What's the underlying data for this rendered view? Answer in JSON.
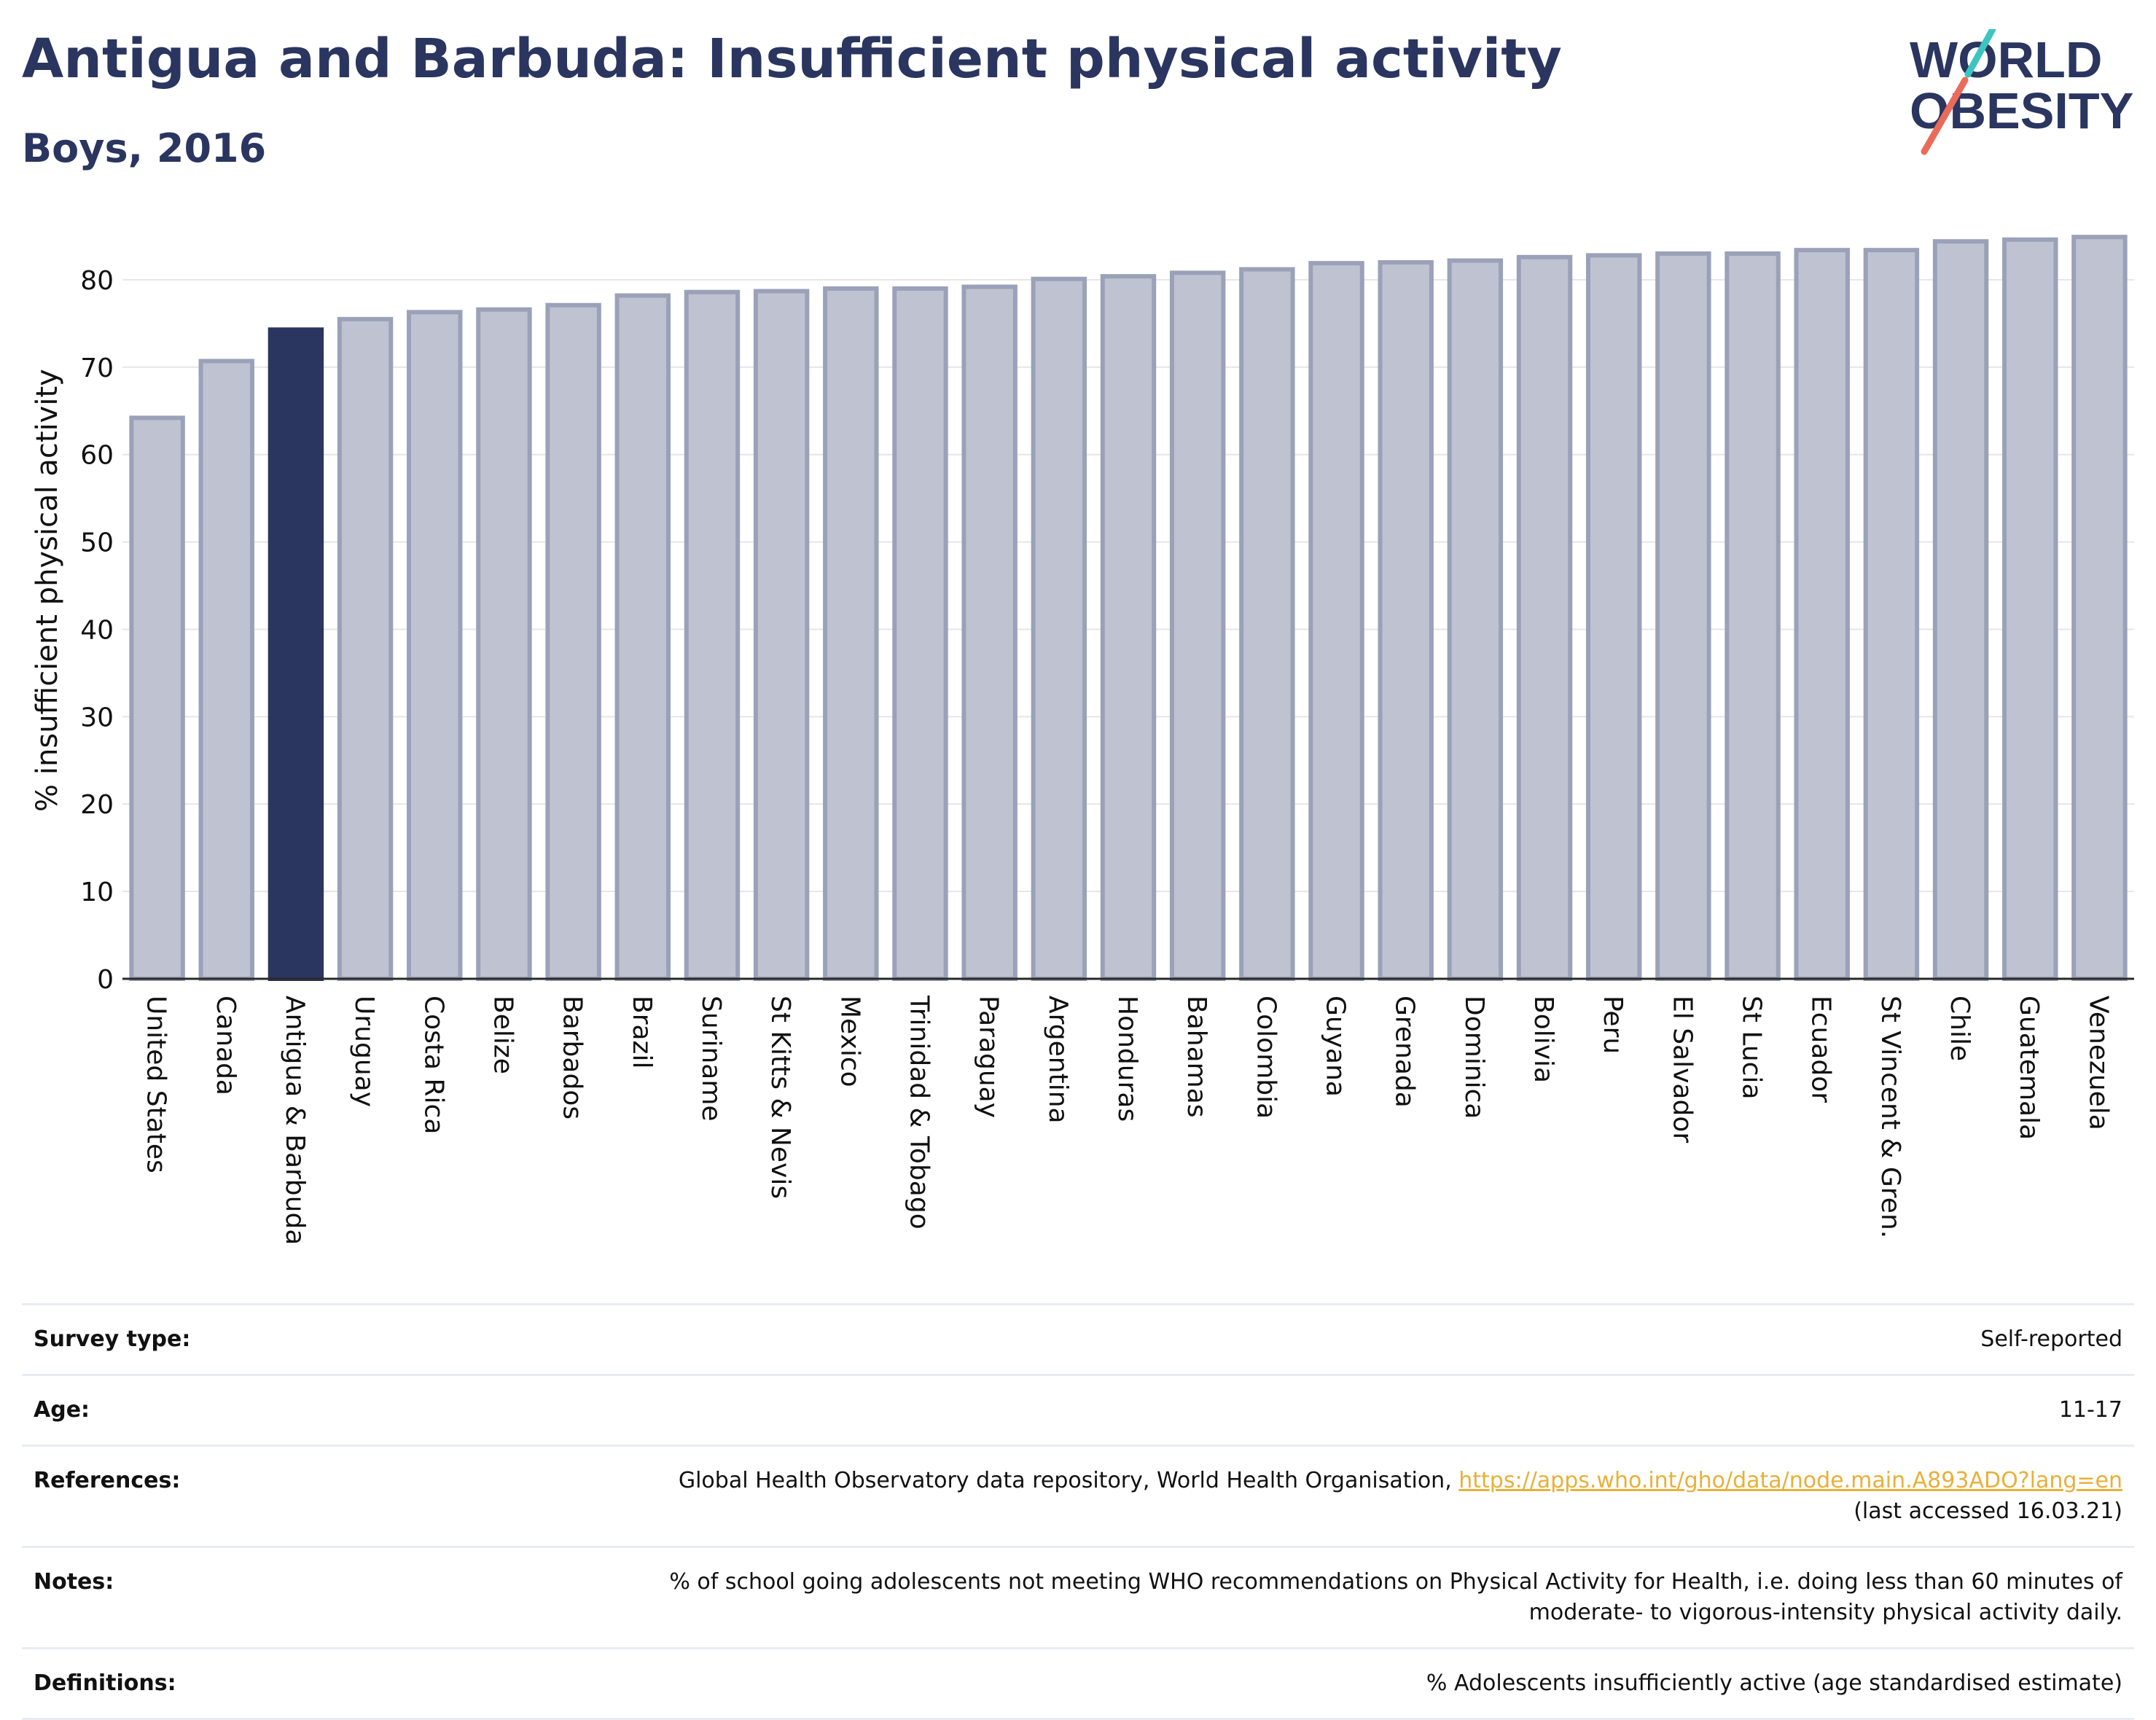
{
  "header": {
    "title": "Antigua and Barbuda: Insufficient physical activity",
    "subtitle": "Boys, 2016"
  },
  "logo": {
    "line1": "WORLD",
    "line2": "OBESITY",
    "slash_colors": [
      "#3cc5c0",
      "#ea6b5a"
    ],
    "text_color": "#2a3560"
  },
  "colors": {
    "bar_fill": "#bfc3d1",
    "bar_stroke": "#9aa1b8",
    "highlight": "#2a3560",
    "grid": "#e6e6e6",
    "axis": "#2a2a2a"
  },
  "chart_data": {
    "type": "bar",
    "title": "",
    "xlabel": "",
    "ylabel": "% insufficient physical activity",
    "ylim": [
      0,
      87
    ],
    "yticks": [
      0,
      10,
      20,
      30,
      40,
      50,
      60,
      70,
      80
    ],
    "grid": true,
    "highlight": "Antigua & Barbuda",
    "categories": [
      "United States",
      "Canada",
      "Antigua & Barbuda",
      "Uruguay",
      "Costa Rica",
      "Belize",
      "Barbados",
      "Brazil",
      "Suriname",
      "St Kitts & Nevis",
      "Mexico",
      "Trinidad & Tobago",
      "Paraguay",
      "Argentina",
      "Honduras",
      "Bahamas",
      "Colombia",
      "Guyana",
      "Grenada",
      "Dominica",
      "Bolivia",
      "Peru",
      "El Salvador",
      "St Lucia",
      "Ecuador",
      "St Vincent & Gren.",
      "Chile",
      "Guatemala",
      "Venezuela"
    ],
    "values": [
      64.2,
      70.7,
      74.3,
      75.5,
      76.3,
      76.6,
      77.1,
      78.2,
      78.6,
      78.7,
      79.0,
      79.0,
      79.2,
      80.1,
      80.4,
      80.8,
      81.2,
      81.9,
      82.0,
      82.2,
      82.6,
      82.8,
      83.0,
      83.0,
      83.4,
      83.4,
      84.4,
      84.6,
      84.9
    ]
  },
  "info": {
    "survey_type": {
      "label": "Survey type:",
      "value": "Self-reported"
    },
    "age": {
      "label": "Age:",
      "value": "11-17"
    },
    "references": {
      "label": "References:",
      "text": "Global Health Observatory data repository, World Health Organisation, ",
      "link": "https://apps.who.int/gho/data/node.main.A893ADO?lang=en",
      "accessed": "(last accessed 16.03.21)"
    },
    "notes": {
      "label": "Notes:",
      "line1": "% of school going adolescents not meeting WHO recommendations on Physical Activity for Health, i.e. doing less than 60 minutes of",
      "line2": "moderate- to vigorous-intensity physical activity daily."
    },
    "definitions": {
      "label": "Definitions:",
      "value": "% Adolescents insufficiently active (age standardised estimate)"
    }
  }
}
